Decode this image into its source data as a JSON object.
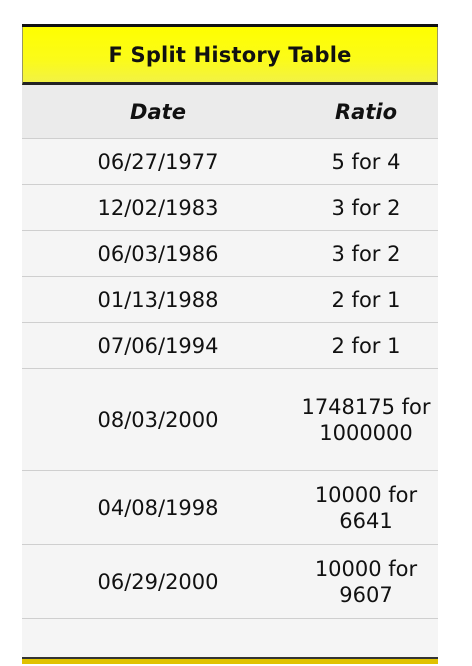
{
  "table": {
    "title": "F Split History Table",
    "columns": [
      "Date",
      "Ratio"
    ],
    "rows": [
      {
        "date": "06/27/1977",
        "ratio": "5 for 4"
      },
      {
        "date": "12/02/1983",
        "ratio": "3 for 2"
      },
      {
        "date": "06/03/1986",
        "ratio": "3 for 2"
      },
      {
        "date": "01/13/1988",
        "ratio": "2 for 1"
      },
      {
        "date": "07/06/1994",
        "ratio": "2 for 1"
      },
      {
        "date": "08/03/2000",
        "ratio": "1748175 for 1000000"
      },
      {
        "date": "04/08/1998",
        "ratio": "10000 for 6641"
      },
      {
        "date": "06/29/2000",
        "ratio": "10000 for 9607"
      }
    ]
  }
}
